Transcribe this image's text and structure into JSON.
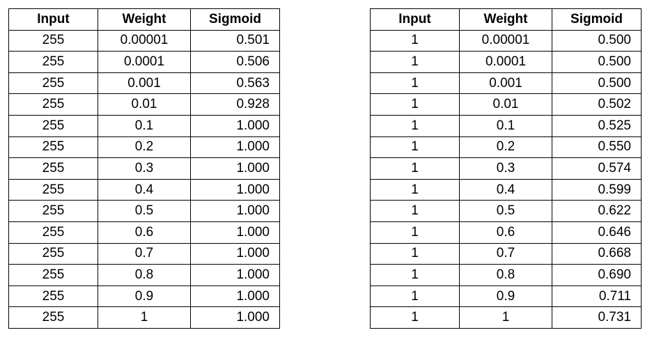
{
  "headers": [
    "Input",
    "Weight",
    "Sigmoid"
  ],
  "tables": [
    {
      "rows": [
        [
          "255",
          "0.00001",
          "0.501"
        ],
        [
          "255",
          "0.0001",
          "0.506"
        ],
        [
          "255",
          "0.001",
          "0.563"
        ],
        [
          "255",
          "0.01",
          "0.928"
        ],
        [
          "255",
          "0.1",
          "1.000"
        ],
        [
          "255",
          "0.2",
          "1.000"
        ],
        [
          "255",
          "0.3",
          "1.000"
        ],
        [
          "255",
          "0.4",
          "1.000"
        ],
        [
          "255",
          "0.5",
          "1.000"
        ],
        [
          "255",
          "0.6",
          "1.000"
        ],
        [
          "255",
          "0.7",
          "1.000"
        ],
        [
          "255",
          "0.8",
          "1.000"
        ],
        [
          "255",
          "0.9",
          "1.000"
        ],
        [
          "255",
          "1",
          "1.000"
        ]
      ]
    },
    {
      "rows": [
        [
          "1",
          "0.00001",
          "0.500"
        ],
        [
          "1",
          "0.0001",
          "0.500"
        ],
        [
          "1",
          "0.001",
          "0.500"
        ],
        [
          "1",
          "0.01",
          "0.502"
        ],
        [
          "1",
          "0.1",
          "0.525"
        ],
        [
          "1",
          "0.2",
          "0.550"
        ],
        [
          "1",
          "0.3",
          "0.574"
        ],
        [
          "1",
          "0.4",
          "0.599"
        ],
        [
          "1",
          "0.5",
          "0.622"
        ],
        [
          "1",
          "0.6",
          "0.646"
        ],
        [
          "1",
          "0.7",
          "0.668"
        ],
        [
          "1",
          "0.8",
          "0.690"
        ],
        [
          "1",
          "0.9",
          "0.711"
        ],
        [
          "1",
          "1",
          "0.731"
        ]
      ]
    }
  ]
}
